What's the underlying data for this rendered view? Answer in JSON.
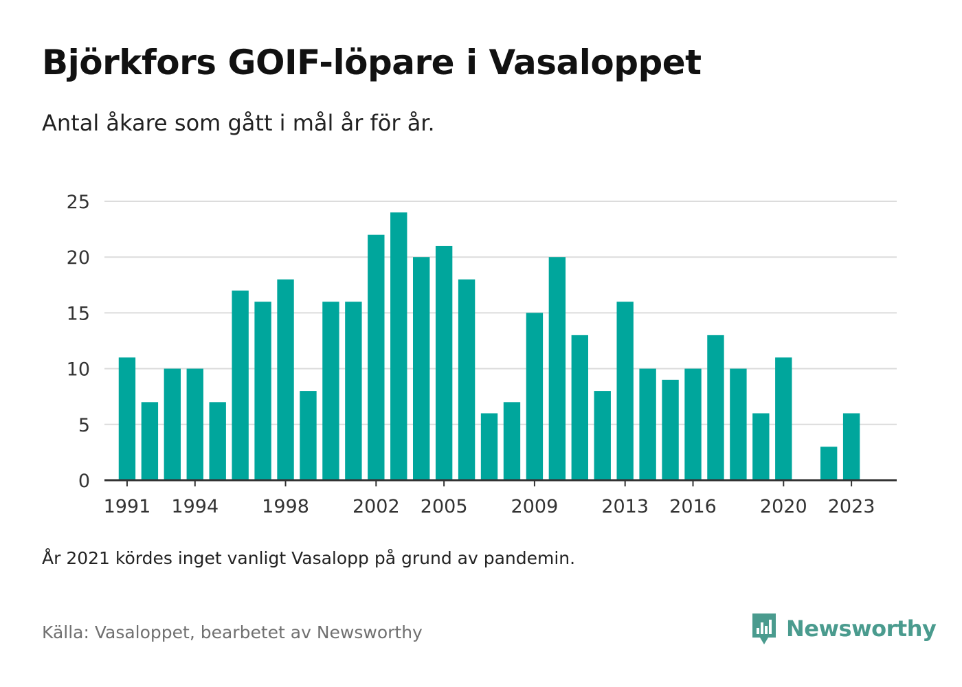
{
  "header": {
    "title": "Björkfors GOIF-löpare i Vasaloppet",
    "subtitle": "Antal åkare som gått i mål år för år."
  },
  "footer": {
    "note": "År 2021 kördes inget vanligt Vasalopp på grund av pandemin.",
    "source": "Källa: Vasaloppet, bearbetet av Newsworthy",
    "brand": "Newsworthy",
    "brand_icon": "newsworthy-logo-icon"
  },
  "colors": {
    "bar": "#00a69c",
    "grid": "#dcdcdc",
    "axis": "#333333",
    "brand": "#4a9b8e"
  },
  "chart_data": {
    "type": "bar",
    "title": "Björkfors GOIF-löpare i Vasaloppet",
    "subtitle": "Antal åkare som gått i mål år för år.",
    "xlabel": "",
    "ylabel": "",
    "grid": true,
    "ylim": [
      0,
      25
    ],
    "yticks": [
      0,
      5,
      10,
      15,
      20,
      25
    ],
    "xticks": [
      1991,
      1994,
      1998,
      2002,
      2005,
      2009,
      2013,
      2016,
      2020,
      2023
    ],
    "xlim": [
      1990,
      2025
    ],
    "x": [
      1991,
      1992,
      1993,
      1994,
      1995,
      1996,
      1997,
      1998,
      1999,
      2000,
      2001,
      2002,
      2003,
      2004,
      2005,
      2006,
      2007,
      2008,
      2009,
      2010,
      2011,
      2012,
      2013,
      2014,
      2015,
      2016,
      2017,
      2018,
      2019,
      2020,
      2022,
      2023
    ],
    "values": [
      11,
      7,
      10,
      10,
      7,
      17,
      16,
      18,
      8,
      16,
      16,
      22,
      24,
      20,
      21,
      18,
      6,
      7,
      15,
      20,
      13,
      8,
      16,
      10,
      9,
      10,
      13,
      10,
      6,
      11,
      3,
      6
    ]
  }
}
